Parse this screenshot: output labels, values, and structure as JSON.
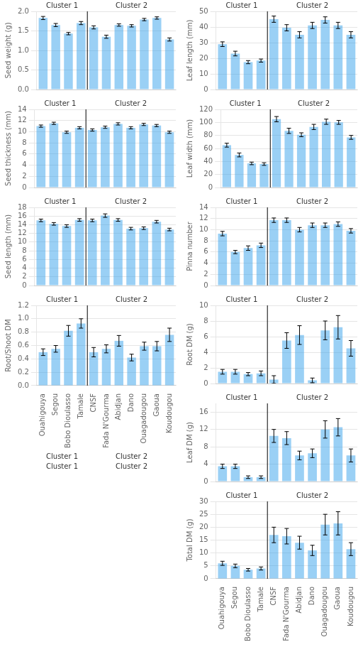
{
  "chart_data": [
    {
      "type": "bar",
      "categories": [
        "Ouahigouya",
        "Segou",
        "Bobo Dioulasso",
        "Tamale",
        "CNSF",
        "Fada N'Gourma",
        "Abidjan",
        "Dano",
        "Ouagadougou",
        "Gaoua",
        "Koudougou"
      ],
      "values": [
        1.83,
        1.65,
        1.43,
        1.7,
        1.59,
        1.35,
        1.65,
        1.63,
        1.79,
        1.83,
        1.28
      ],
      "errors": [
        0.04,
        0.04,
        0.03,
        0.04,
        0.04,
        0.04,
        0.03,
        0.03,
        0.03,
        0.03,
        0.04
      ],
      "ylabel": "Seed weight (g)",
      "ylim": [
        0,
        2.0
      ],
      "yticks": [
        {
          "value": 0.0,
          "label": "0.0"
        },
        0.5,
        {
          "value": 1.0,
          "label": "1.0"
        },
        1.5,
        {
          "value": 2.0,
          "label": "2.0"
        }
      ],
      "grid": true,
      "tick_labels": "y",
      "clusters": [
        {
          "label": "Cluster 1",
          "count": 4
        },
        {
          "label": "Cluster 2",
          "count": 7
        }
      ]
    },
    {
      "type": "bar",
      "categories": [
        "Ouahigouya",
        "Segou",
        "Bobo Dioulasso",
        "Tamale",
        "CNSF",
        "Fada N'Gourma",
        "Abidjan",
        "Dano",
        "Ouagadougou",
        "Gaoua",
        "Koudougou"
      ],
      "values": [
        11.0,
        11.5,
        9.9,
        10.7,
        10.3,
        10.8,
        11.4,
        10.7,
        11.3,
        11.1,
        9.9
      ],
      "errors": [
        0.2,
        0.2,
        0.2,
        0.2,
        0.2,
        0.2,
        0.2,
        0.2,
        0.2,
        0.2,
        0.2
      ],
      "ylabel": "Seed thickness (mm)",
      "ylim": [
        0,
        14
      ],
      "yticks": [
        0,
        2,
        4,
        6,
        8,
        10,
        12,
        14
      ],
      "grid": true,
      "tick_labels": "y",
      "clusters": [
        {
          "label": "Cluster 1",
          "count": 4
        },
        {
          "label": "Cluster 2",
          "count": 7
        }
      ]
    },
    {
      "type": "bar",
      "categories": [
        "Ouahigouya",
        "Segou",
        "Bobo Dioulasso",
        "Tamale",
        "CNSF",
        "Fada N'Gourma",
        "Abidjan",
        "Dano",
        "Ouagadougou",
        "Gaoua",
        "Koudougou"
      ],
      "values": [
        15.0,
        14.2,
        13.7,
        15.1,
        15.0,
        16.1,
        15.1,
        13.1,
        13.2,
        14.7,
        12.9
      ],
      "errors": [
        0.3,
        0.3,
        0.3,
        0.3,
        0.3,
        0.4,
        0.3,
        0.3,
        0.3,
        0.3,
        0.3
      ],
      "ylabel": "Seed length (mm)",
      "ylim": [
        0,
        18
      ],
      "yticks": [
        0,
        2,
        4,
        6,
        8,
        10,
        12,
        14,
        16,
        18
      ],
      "grid": true,
      "tick_labels": "y",
      "clusters": [
        {
          "label": "Cluster 1",
          "count": 4
        },
        {
          "label": "Cluster 2",
          "count": 7
        }
      ]
    },
    {
      "type": "bar",
      "categories": [
        "Ouahigouya",
        "Segou",
        "Bobo Dioulasso",
        "Tamale",
        "CNSF",
        "Fada N'Gourma",
        "Abidjan",
        "Dano",
        "Ouagadougou",
        "Gaoua",
        "Koudougou"
      ],
      "values": [
        0.5,
        0.55,
        0.82,
        0.93,
        0.5,
        0.55,
        0.67,
        0.42,
        0.59,
        0.59,
        0.76
      ],
      "errors": [
        0.05,
        0.05,
        0.08,
        0.07,
        0.07,
        0.06,
        0.08,
        0.05,
        0.06,
        0.07,
        0.1
      ],
      "ylabel": "Root/Shoot DM",
      "ylim": [
        0,
        1.2
      ],
      "yticks": [
        {
          "value": 0.0,
          "label": "0.0"
        },
        0.2,
        0.4,
        0.6,
        0.8,
        {
          "value": 1.0,
          "label": "1.0"
        },
        1.2
      ],
      "grid": true,
      "clusters": [
        {
          "label": "Cluster 1",
          "count": 4
        },
        {
          "label": "Cluster 2",
          "count": 7
        }
      ],
      "annotations": [
        "Cluster 1",
        "Cluster 2",
        "Cluster 1",
        "Cluster 2"
      ]
    },
    {
      "type": "bar",
      "categories": [
        "Ouahigouya",
        "Segou",
        "Bobo Dioulasso",
        "Tamale",
        "CNSF",
        "Fada N'Gourma",
        "Abidjan",
        "Dano",
        "Ouagadougou",
        "Gaoua",
        "Koudougou"
      ],
      "values": [
        29.0,
        23.0,
        17.5,
        18.5,
        45.0,
        39.5,
        35.0,
        41.0,
        44.5,
        41.0,
        35.0
      ],
      "errors": [
        1.5,
        1.5,
        1.0,
        1.0,
        2.0,
        2.0,
        2.0,
        2.0,
        2.0,
        2.0,
        2.0
      ],
      "ylabel": "Leaf length (mm)",
      "ylim": [
        0,
        50
      ],
      "yticks": [
        0,
        10,
        20,
        30,
        40,
        50
      ],
      "grid": true,
      "tick_labels": "y",
      "clusters": [
        {
          "label": "Cluster 1",
          "count": 4
        },
        {
          "label": "Cluster 2",
          "count": 7
        }
      ]
    },
    {
      "type": "bar",
      "categories": [
        "Ouahigouya",
        "Segou",
        "Bobo Dioulasso",
        "Tamale",
        "CNSF",
        "Fada N'Gourma",
        "Abidjan",
        "Dano",
        "Ouagadougou",
        "Gaoua",
        "Koudougou"
      ],
      "values": [
        65.0,
        50.0,
        37.0,
        36.0,
        105.0,
        87.0,
        81.0,
        93.0,
        101.0,
        100.0,
        77.0
      ],
      "errors": [
        3.0,
        3.0,
        2.0,
        2.0,
        4.0,
        4.0,
        3.0,
        4.0,
        4.0,
        3.0,
        3.0
      ],
      "ylabel": "Leaf width (mm)",
      "ylim": [
        0,
        120
      ],
      "yticks": [
        0,
        20,
        40,
        60,
        80,
        100,
        120
      ],
      "grid": true,
      "tick_labels": "y",
      "clusters": [
        {
          "label": "Cluster 1",
          "count": 4
        },
        {
          "label": "Cluster 2",
          "count": 7
        }
      ]
    },
    {
      "type": "bar",
      "categories": [
        "Ouahigouya",
        "Segou",
        "Bobo Dioulasso",
        "Tamale",
        "CNSF",
        "Fada N'Gourma",
        "Abidjan",
        "Dano",
        "Ouagadougou",
        "Gaoua",
        "Koudougou"
      ],
      "values": [
        9.3,
        6.0,
        6.7,
        7.2,
        11.7,
        11.7,
        10.0,
        10.8,
        10.8,
        11.0,
        9.8
      ],
      "errors": [
        0.4,
        0.3,
        0.4,
        0.4,
        0.4,
        0.4,
        0.4,
        0.4,
        0.4,
        0.4,
        0.4
      ],
      "ylabel": "Pinna number",
      "ylim": [
        0,
        14
      ],
      "yticks": [
        0,
        2,
        4,
        6,
        8,
        10,
        12,
        14
      ],
      "grid": true,
      "tick_labels": "y",
      "clusters": [
        {
          "label": "Cluster 1",
          "count": 4
        },
        {
          "label": "Cluster 2",
          "count": 7
        }
      ]
    },
    {
      "type": "bar",
      "categories": [
        "Ouahigouya",
        "Segou",
        "Bobo Dioulasso",
        "Tamale",
        "CNSF",
        "Fada N'Gourma",
        "Abidjan",
        "Dano",
        "Ouagadougou",
        "Gaoua",
        "Koudougou"
      ],
      "values": [
        1.5,
        1.5,
        1.2,
        1.3,
        0.5,
        5.5,
        6.2,
        0.4,
        6.8,
        7.2,
        4.5
      ],
      "errors": [
        0.3,
        0.3,
        0.2,
        0.3,
        0.5,
        1.0,
        1.2,
        0.3,
        1.2,
        1.5,
        1.0
      ],
      "ylabel": "Root DM (g)",
      "ylim": [
        0,
        10
      ],
      "yticks": [
        0,
        2,
        4,
        6,
        8,
        10
      ],
      "grid": true,
      "tick_labels": "y",
      "clusters": [
        {
          "label": "Cluster 1",
          "count": 4
        },
        {
          "label": "Cluster 2",
          "count": 7
        }
      ]
    },
    {
      "type": "bar",
      "categories": [
        "Ouahigouya",
        "Segou",
        "Bobo Dioulasso",
        "Tamale",
        "CNSF",
        "Fada N'Gourma",
        "Abidjan",
        "Dano",
        "Ouagadougou",
        "Gaoua",
        "Koudougou"
      ],
      "values": [
        3.5,
        3.5,
        1.0,
        1.0,
        10.5,
        10.0,
        6.0,
        6.5,
        12.0,
        12.5,
        6.0
      ],
      "errors": [
        0.5,
        0.5,
        0.3,
        0.3,
        1.5,
        1.5,
        1.0,
        1.0,
        2.0,
        2.0,
        1.5
      ],
      "ylabel": "Leaf DM (g)",
      "ylim": [
        0,
        18
      ],
      "yticks": [
        0,
        4,
        8,
        12,
        16
      ],
      "grid": true,
      "tick_labels": "y",
      "clusters": [
        {
          "label": "Cluster 1",
          "count": 4
        },
        {
          "label": "Cluster 2",
          "count": 7
        }
      ]
    },
    {
      "type": "bar",
      "categories": [
        "Ouahigouya",
        "Segou",
        "Bobo Dioulasso",
        "Tamale",
        "CNSF",
        "Fada N'Gourma",
        "Abidjan",
        "Dano",
        "Ouagadougou",
        "Gaoua",
        "Koudougou"
      ],
      "values": [
        6.0,
        5.0,
        3.5,
        4.0,
        17.0,
        16.5,
        14.0,
        11.0,
        21.0,
        21.5,
        11.5
      ],
      "errors": [
        0.8,
        0.7,
        0.5,
        0.6,
        3.0,
        3.0,
        2.5,
        2.0,
        4.0,
        4.5,
        2.5
      ],
      "ylabel": "Total DM (g)",
      "ylim": [
        0,
        30
      ],
      "yticks": [
        0,
        5,
        10,
        15,
        20,
        25,
        30
      ],
      "grid": true,
      "clusters": [
        {
          "label": "Cluster 1",
          "count": 4
        },
        {
          "label": "Cluster 2",
          "count": 7
        }
      ]
    }
  ]
}
